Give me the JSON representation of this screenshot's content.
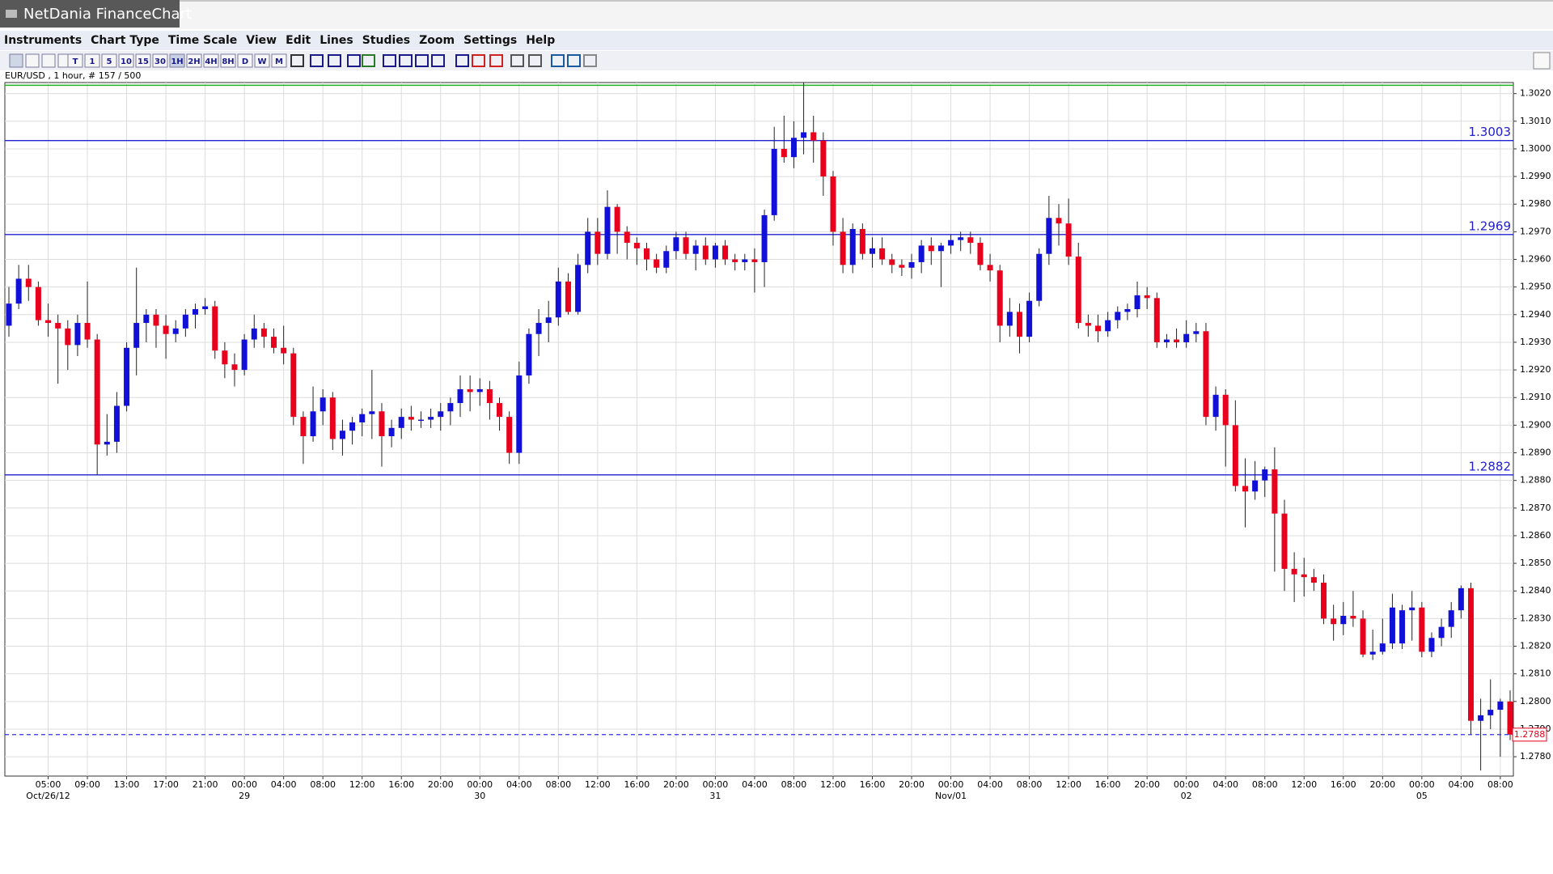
{
  "window": {
    "title": "NetDania FinanceChart"
  },
  "menu": [
    "Instruments",
    "Chart Type",
    "Time Scale",
    "View",
    "Edit",
    "Lines",
    "Studies",
    "Zoom",
    "Settings",
    "Help"
  ],
  "toolbar": [
    "T",
    "1",
    "5",
    "10",
    "15",
    "30",
    "1H",
    "2H",
    "4H",
    "8H",
    "D",
    "W",
    "M"
  ],
  "chart_data": {
    "type": "candlestick",
    "subtitle": "EUR/USD , 1 hour, # 157 / 500",
    "categories": [
      null,
      null,
      null,
      null,
      "05:00",
      null,
      null,
      null,
      "09:00",
      null,
      null,
      null,
      "13:00",
      null,
      null,
      null,
      "17:00",
      null,
      null,
      null,
      "21:00",
      null,
      null,
      null,
      "00:00",
      null,
      null,
      null,
      "04:00",
      null,
      null,
      null,
      "08:00",
      null,
      null,
      null,
      "12:00",
      null,
      null,
      null,
      "16:00",
      null,
      null,
      null,
      "20:00",
      null,
      null,
      null,
      "00:00",
      null,
      null,
      null,
      "04:00",
      null,
      null,
      null,
      "08:00",
      null,
      null,
      null,
      "12:00",
      null,
      null,
      null,
      "16:00",
      null,
      null,
      null,
      "20:00",
      null,
      null,
      null,
      "00:00",
      null,
      null,
      null,
      "04:00",
      null,
      null,
      null,
      "08:00",
      null,
      null,
      null,
      "12:00",
      null,
      null,
      null,
      "16:00",
      null,
      null,
      null,
      "20:00",
      null,
      null,
      null,
      "00:00",
      null,
      null,
      null,
      "04:00",
      null,
      null,
      null,
      "08:00",
      null,
      null,
      null,
      "12:00",
      null,
      null,
      null,
      "16:00",
      null,
      null,
      null,
      "20:00",
      null,
      null,
      null,
      "00:00",
      null,
      null,
      null,
      "04:00",
      null,
      null,
      null,
      "08:00",
      null,
      null,
      null,
      "12:00",
      null,
      null,
      null,
      "16:00",
      null,
      null,
      null,
      "20:00",
      null,
      null,
      null,
      "00:00",
      null,
      null,
      null,
      "04:00",
      null,
      null,
      null,
      "08:00",
      null
    ],
    "dates": [
      null,
      null,
      null,
      null,
      "Oct/26/12",
      null,
      null,
      null,
      null,
      null,
      null,
      null,
      null,
      null,
      null,
      null,
      null,
      null,
      null,
      null,
      null,
      null,
      null,
      null,
      "29",
      null,
      null,
      null,
      null,
      null,
      null,
      null,
      null,
      null,
      null,
      null,
      null,
      null,
      null,
      null,
      null,
      null,
      null,
      null,
      null,
      null,
      null,
      null,
      "30",
      null,
      null,
      null,
      null,
      null,
      null,
      null,
      null,
      null,
      null,
      null,
      null,
      null,
      null,
      null,
      null,
      null,
      null,
      null,
      null,
      null,
      null,
      null,
      "31",
      null,
      null,
      null,
      null,
      null,
      null,
      null,
      null,
      null,
      null,
      null,
      null,
      null,
      null,
      null,
      null,
      null,
      null,
      null,
      null,
      null,
      null,
      null,
      "Nov/01",
      null,
      null,
      null,
      null,
      null,
      null,
      null,
      null,
      null,
      null,
      null,
      null,
      null,
      null,
      null,
      null,
      null,
      null,
      null,
      null,
      null,
      null,
      null,
      "02",
      null,
      null,
      null,
      null,
      null,
      null,
      null,
      null,
      null,
      null,
      null,
      null,
      null,
      null,
      null,
      null,
      null,
      null,
      null,
      null,
      null,
      null,
      null,
      "05",
      null,
      null,
      null,
      null,
      null,
      null,
      null,
      null,
      null
    ],
    "ohlc": [
      [
        1.2936,
        1.295,
        1.2932,
        1.2944
      ],
      [
        1.2944,
        1.2958,
        1.2942,
        1.2953
      ],
      [
        1.2953,
        1.2958,
        1.2945,
        1.295
      ],
      [
        1.295,
        1.2952,
        1.2936,
        1.2938
      ],
      [
        1.2938,
        1.2944,
        1.2932,
        1.2937
      ],
      [
        1.2937,
        1.294,
        1.2915,
        1.2935
      ],
      [
        1.2935,
        1.2938,
        1.292,
        1.2929
      ],
      [
        1.2929,
        1.294,
        1.2925,
        1.2937
      ],
      [
        1.2937,
        1.2952,
        1.2928,
        1.2931
      ],
      [
        1.2931,
        1.2933,
        1.2882,
        1.2893
      ],
      [
        1.2893,
        1.2904,
        1.2889,
        1.2894
      ],
      [
        1.2894,
        1.2912,
        1.289,
        1.2907
      ],
      [
        1.2907,
        1.293,
        1.2905,
        1.2928
      ],
      [
        1.2928,
        1.2957,
        1.2918,
        1.2937
      ],
      [
        1.2937,
        1.2942,
        1.293,
        1.294
      ],
      [
        1.294,
        1.2942,
        1.2928,
        1.2936
      ],
      [
        1.2936,
        1.294,
        1.2924,
        1.2933
      ],
      [
        1.2933,
        1.2938,
        1.293,
        1.2935
      ],
      [
        1.2935,
        1.2942,
        1.2932,
        1.294
      ],
      [
        1.294,
        1.2944,
        1.2935,
        1.2942
      ],
      [
        1.2942,
        1.2946,
        1.294,
        1.2943
      ],
      [
        1.2943,
        1.2945,
        1.2924,
        1.2927
      ],
      [
        1.2927,
        1.293,
        1.2917,
        1.2922
      ],
      [
        1.2922,
        1.2926,
        1.2914,
        1.292
      ],
      [
        1.292,
        1.2933,
        1.2918,
        1.2931
      ],
      [
        1.2931,
        1.294,
        1.2928,
        1.2935
      ],
      [
        1.2935,
        1.2937,
        1.2928,
        1.2932
      ],
      [
        1.2932,
        1.2935,
        1.2926,
        1.2928
      ],
      [
        1.2928,
        1.2936,
        1.2922,
        1.2926
      ],
      [
        1.2926,
        1.2928,
        1.29,
        1.2903
      ],
      [
        1.2903,
        1.2905,
        1.2886,
        1.2896
      ],
      [
        1.2896,
        1.2914,
        1.2894,
        1.2905
      ],
      [
        1.2905,
        1.2913,
        1.29,
        1.291
      ],
      [
        1.291,
        1.2912,
        1.2891,
        1.2895
      ],
      [
        1.2895,
        1.2902,
        1.2889,
        1.2898
      ],
      [
        1.2898,
        1.2903,
        1.2893,
        1.2901
      ],
      [
        1.2901,
        1.2906,
        1.2896,
        1.2904
      ],
      [
        1.2904,
        1.292,
        1.2895,
        1.2905
      ],
      [
        1.2905,
        1.2908,
        1.2885,
        1.2896
      ],
      [
        1.2896,
        1.2902,
        1.2892,
        1.2899
      ],
      [
        1.2899,
        1.2906,
        1.2895,
        1.2903
      ],
      [
        1.2903,
        1.2907,
        1.2898,
        1.2902
      ],
      [
        1.2902,
        1.2905,
        1.2899,
        1.2902
      ],
      [
        1.2902,
        1.2906,
        1.2899,
        1.2903
      ],
      [
        1.2903,
        1.2908,
        1.2898,
        1.2905
      ],
      [
        1.2905,
        1.291,
        1.29,
        1.2908
      ],
      [
        1.2908,
        1.2918,
        1.2903,
        1.2913
      ],
      [
        1.2913,
        1.2918,
        1.2905,
        1.2912
      ],
      [
        1.2912,
        1.2917,
        1.2907,
        1.2913
      ],
      [
        1.2913,
        1.2916,
        1.2902,
        1.2908
      ],
      [
        1.2908,
        1.291,
        1.2898,
        1.2903
      ],
      [
        1.2903,
        1.2905,
        1.2886,
        1.289
      ],
      [
        1.289,
        1.2923,
        1.2886,
        1.2918
      ],
      [
        1.2918,
        1.2935,
        1.2915,
        1.2933
      ],
      [
        1.2933,
        1.2942,
        1.2925,
        1.2937
      ],
      [
        1.2937,
        1.2945,
        1.293,
        1.2939
      ],
      [
        1.2939,
        1.2957,
        1.2936,
        1.2952
      ],
      [
        1.2952,
        1.2955,
        1.294,
        1.2941
      ],
      [
        1.2941,
        1.2962,
        1.294,
        1.2958
      ],
      [
        1.2958,
        1.2975,
        1.2955,
        1.297
      ],
      [
        1.297,
        1.2975,
        1.2958,
        1.2962
      ],
      [
        1.2962,
        1.2985,
        1.296,
        1.2979
      ],
      [
        1.2979,
        1.298,
        1.2962,
        1.297
      ],
      [
        1.297,
        1.2972,
        1.296,
        1.2966
      ],
      [
        1.2966,
        1.2968,
        1.2958,
        1.2964
      ],
      [
        1.2964,
        1.2966,
        1.2956,
        1.296
      ],
      [
        1.296,
        1.2962,
        1.2955,
        1.2957
      ],
      [
        1.2957,
        1.2965,
        1.2955,
        1.2963
      ],
      [
        1.2963,
        1.297,
        1.296,
        1.2968
      ],
      [
        1.2968,
        1.297,
        1.296,
        1.2962
      ],
      [
        1.2962,
        1.2967,
        1.2956,
        1.2965
      ],
      [
        1.2965,
        1.2968,
        1.2958,
        1.296
      ],
      [
        1.296,
        1.2966,
        1.2957,
        1.2965
      ],
      [
        1.2965,
        1.2967,
        1.2958,
        1.296
      ],
      [
        1.296,
        1.2962,
        1.2956,
        1.2959
      ],
      [
        1.2959,
        1.2962,
        1.2956,
        1.296
      ],
      [
        1.296,
        1.2964,
        1.2948,
        1.2959
      ],
      [
        1.2959,
        1.2978,
        1.295,
        1.2976
      ],
      [
        1.2976,
        1.3008,
        1.2974,
        1.3
      ],
      [
        1.3,
        1.3012,
        1.2995,
        1.2997
      ],
      [
        1.2997,
        1.301,
        1.2993,
        1.3004
      ],
      [
        1.3004,
        1.3024,
        1.2998,
        1.3006
      ],
      [
        1.3006,
        1.3012,
        1.2995,
        1.3003
      ],
      [
        1.3003,
        1.3006,
        1.2983,
        1.299
      ],
      [
        1.299,
        1.2992,
        1.2965,
        1.297
      ],
      [
        1.297,
        1.2975,
        1.2955,
        1.2958
      ],
      [
        1.2958,
        1.2973,
        1.2955,
        1.2971
      ],
      [
        1.2971,
        1.2973,
        1.296,
        1.2962
      ],
      [
        1.2962,
        1.2968,
        1.2957,
        1.2964
      ],
      [
        1.2964,
        1.2968,
        1.2958,
        1.296
      ],
      [
        1.296,
        1.2962,
        1.2955,
        1.2958
      ],
      [
        1.2958,
        1.296,
        1.2954,
        1.2957
      ],
      [
        1.2957,
        1.2962,
        1.2953,
        1.2959
      ],
      [
        1.2959,
        1.2967,
        1.2955,
        1.2965
      ],
      [
        1.2965,
        1.2968,
        1.2958,
        1.2963
      ],
      [
        1.2963,
        1.2966,
        1.295,
        1.2965
      ],
      [
        1.2965,
        1.2969,
        1.2962,
        1.2967
      ],
      [
        1.2967,
        1.297,
        1.2963,
        1.2968
      ],
      [
        1.2968,
        1.297,
        1.2962,
        1.2966
      ],
      [
        1.2966,
        1.2968,
        1.2956,
        1.2958
      ],
      [
        1.2958,
        1.2962,
        1.2952,
        1.2956
      ],
      [
        1.2956,
        1.2958,
        1.293,
        1.2936
      ],
      [
        1.2936,
        1.2946,
        1.2932,
        1.2941
      ],
      [
        1.2941,
        1.2944,
        1.2926,
        1.2932
      ],
      [
        1.2932,
        1.2948,
        1.293,
        1.2945
      ],
      [
        1.2945,
        1.2964,
        1.2943,
        1.2962
      ],
      [
        1.2962,
        1.2983,
        1.2958,
        1.2975
      ],
      [
        1.2975,
        1.298,
        1.2965,
        1.2973
      ],
      [
        1.2973,
        1.2982,
        1.2958,
        1.2961
      ],
      [
        1.2961,
        1.2966,
        1.2935,
        1.2937
      ],
      [
        1.2937,
        1.294,
        1.2932,
        1.2936
      ],
      [
        1.2936,
        1.294,
        1.293,
        1.2934
      ],
      [
        1.2934,
        1.2941,
        1.2932,
        1.2938
      ],
      [
        1.2938,
        1.2943,
        1.2935,
        1.2941
      ],
      [
        1.2941,
        1.2944,
        1.2938,
        1.2942
      ],
      [
        1.2942,
        1.2952,
        1.2939,
        1.2947
      ],
      [
        1.2947,
        1.295,
        1.2942,
        1.2946
      ],
      [
        1.2946,
        1.2948,
        1.2928,
        1.293
      ],
      [
        1.293,
        1.2933,
        1.2928,
        1.2931
      ],
      [
        1.2931,
        1.2935,
        1.2928,
        1.293
      ],
      [
        1.293,
        1.2938,
        1.2928,
        1.2933
      ],
      [
        1.2933,
        1.2937,
        1.293,
        1.2934
      ],
      [
        1.2934,
        1.2937,
        1.29,
        1.2903
      ],
      [
        1.2903,
        1.2914,
        1.2898,
        1.2911
      ],
      [
        1.2911,
        1.2913,
        1.2885,
        1.29
      ],
      [
        1.29,
        1.2909,
        1.2876,
        1.2878
      ],
      [
        1.2878,
        1.2888,
        1.2863,
        1.2876
      ],
      [
        1.2876,
        1.2887,
        1.2873,
        1.288
      ],
      [
        1.288,
        1.2885,
        1.2874,
        1.2884
      ],
      [
        1.2884,
        1.2892,
        1.2847,
        1.2868
      ],
      [
        1.2868,
        1.2873,
        1.284,
        1.2848
      ],
      [
        1.2848,
        1.2854,
        1.2836,
        1.2846
      ],
      [
        1.2846,
        1.2852,
        1.2838,
        1.2845
      ],
      [
        1.2845,
        1.2848,
        1.284,
        1.2843
      ],
      [
        1.2843,
        1.2846,
        1.2828,
        1.283
      ],
      [
        1.283,
        1.2835,
        1.2822,
        1.2828
      ],
      [
        1.2828,
        1.2836,
        1.2824,
        1.2831
      ],
      [
        1.2831,
        1.284,
        1.2827,
        1.283
      ],
      [
        1.283,
        1.2833,
        1.2816,
        1.2817
      ],
      [
        1.2817,
        1.2826,
        1.2815,
        1.2818
      ],
      [
        1.2818,
        1.283,
        1.2817,
        1.2821
      ],
      [
        1.2821,
        1.2839,
        1.2819,
        1.2834
      ],
      [
        1.2821,
        1.2835,
        1.2819,
        1.2833
      ],
      [
        1.2833,
        1.284,
        1.2822,
        1.2834
      ],
      [
        1.2834,
        1.2836,
        1.2816,
        1.2818
      ],
      [
        1.2818,
        1.2825,
        1.2816,
        1.2823
      ],
      [
        1.2823,
        1.283,
        1.282,
        1.2827
      ],
      [
        1.2827,
        1.2836,
        1.2823,
        1.2833
      ],
      [
        1.2833,
        1.2842,
        1.283,
        1.2841
      ],
      [
        1.2841,
        1.2843,
        1.2788,
        1.2793
      ],
      [
        1.2793,
        1.2801,
        1.2775,
        1.2795
      ],
      [
        1.2795,
        1.2808,
        1.279,
        1.2797
      ],
      [
        1.2797,
        1.2801,
        1.278,
        1.28
      ],
      [
        1.28,
        1.2804,
        1.2786,
        1.2788
      ]
    ],
    "up_color": "#1010d8",
    "down_color": "#e8001c",
    "ylim": [
      1.2773,
      1.3024
    ],
    "yticks": [
      {
        "value": 1.278,
        "label": "1.2780"
      },
      {
        "value": 1.279,
        "label": "1.2790"
      },
      {
        "value": 1.28,
        "label": "1.2800"
      },
      {
        "value": 1.281,
        "label": "1.2810"
      },
      {
        "value": 1.282,
        "label": "1.2820"
      },
      {
        "value": 1.283,
        "label": "1.2830"
      },
      {
        "value": 1.284,
        "label": "1.2840"
      },
      {
        "value": 1.285,
        "label": "1.2850"
      },
      {
        "value": 1.286,
        "label": "1.2860"
      },
      {
        "value": 1.287,
        "label": "1.2870"
      },
      {
        "value": 1.288,
        "label": "1.2880"
      },
      {
        "value": 1.289,
        "label": "1.2890"
      },
      {
        "value": 1.29,
        "label": "1.2900"
      },
      {
        "value": 1.291,
        "label": "1.2910"
      },
      {
        "value": 1.292,
        "label": "1.2920"
      },
      {
        "value": 1.293,
        "label": "1.2930"
      },
      {
        "value": 1.294,
        "label": "1.2940"
      },
      {
        "value": 1.295,
        "label": "1.2950"
      },
      {
        "value": 1.296,
        "label": "1.2960"
      },
      {
        "value": 1.297,
        "label": "1.2970"
      },
      {
        "value": 1.298,
        "label": "1.2980"
      },
      {
        "value": 1.299,
        "label": "1.2990"
      },
      {
        "value": 1.3,
        "label": "1.3000"
      },
      {
        "value": 1.301,
        "label": "1.3010"
      },
      {
        "value": 1.302,
        "label": "1.3020"
      }
    ],
    "grid": true,
    "levels": [
      1.3003,
      1.2969,
      1.2882
    ],
    "level_color": "#2020d0",
    "marker_line": 1.3023,
    "marker_color": "#22b022",
    "current": 1.2788,
    "current_color": "#3030e0"
  }
}
